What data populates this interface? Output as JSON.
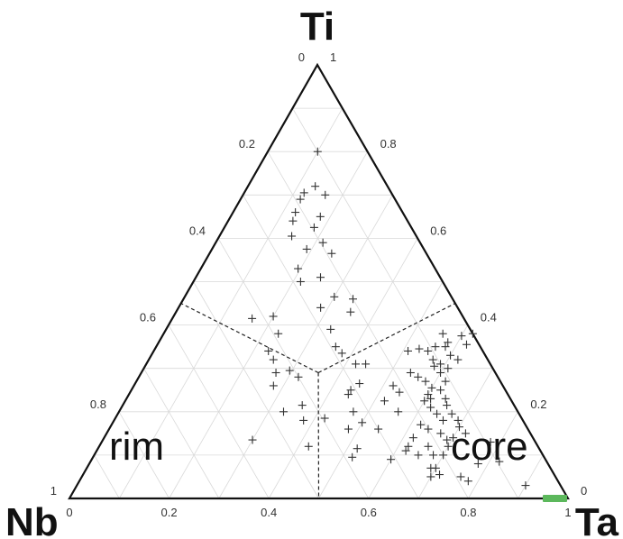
{
  "chart_data": {
    "type": "scatter",
    "subtype": "ternary",
    "vertices": {
      "top": "Ti",
      "left": "Nb",
      "right": "Ta"
    },
    "grid": true,
    "grid_step": 0.1,
    "marker": "plus",
    "tick_labels": {
      "bottom": [
        "0",
        "0.2",
        "0.4",
        "0.6",
        "0.8",
        "1"
      ],
      "left": [
        "0",
        "0.2",
        "0.4",
        "0.6",
        "0.8",
        "1"
      ],
      "right": [
        "1",
        "0.8",
        "0.6",
        "0.4",
        "0.2",
        "0"
      ]
    },
    "regions": [
      {
        "label": "rim"
      },
      {
        "label": "core"
      }
    ],
    "boundary_center": {
      "Ti": 0.29,
      "Nb": 0.355,
      "Ta": 0.355
    },
    "boundary_ends": [
      {
        "Ti": 0.45,
        "Nb": 0.55,
        "Ta": 0.0
      },
      {
        "Ti": 0.45,
        "Nb": 0.0,
        "Ta": 0.55
      },
      {
        "Ti": 0.0,
        "Nb": 0.5,
        "Ta": 0.5
      }
    ],
    "highlight": {
      "color": "#5cb85c",
      "Ta_from": 0.95,
      "Ta_to": 1.0,
      "Ti": 0.0
    },
    "points": [
      [
        0.8,
        0.1
      ],
      [
        0.705,
        0.12
      ],
      [
        0.72,
        0.135
      ],
      [
        0.69,
        0.12
      ],
      [
        0.66,
        0.125
      ],
      [
        0.64,
        0.13
      ],
      [
        0.7,
        0.165
      ],
      [
        0.65,
        0.18
      ],
      [
        0.605,
        0.145
      ],
      [
        0.625,
        0.18
      ],
      [
        0.575,
        0.19
      ],
      [
        0.59,
        0.215
      ],
      [
        0.565,
        0.245
      ],
      [
        0.53,
        0.195
      ],
      [
        0.5,
        0.215
      ],
      [
        0.51,
        0.25
      ],
      [
        0.465,
        0.3
      ],
      [
        0.44,
        0.285
      ],
      [
        0.46,
        0.34
      ],
      [
        0.43,
        0.35
      ],
      [
        0.42,
        0.2
      ],
      [
        0.415,
        0.16
      ],
      [
        0.38,
        0.23
      ],
      [
        0.39,
        0.33
      ],
      [
        0.34,
        0.23
      ],
      [
        0.32,
        0.25
      ],
      [
        0.35,
        0.36
      ],
      [
        0.335,
        0.38
      ],
      [
        0.31,
        0.42
      ],
      [
        0.29,
        0.27
      ],
      [
        0.295,
        0.295
      ],
      [
        0.28,
        0.32
      ],
      [
        0.26,
        0.28
      ],
      [
        0.265,
        0.45
      ],
      [
        0.24,
        0.44
      ],
      [
        0.225,
        0.52
      ],
      [
        0.215,
        0.36
      ],
      [
        0.2,
        0.33
      ],
      [
        0.185,
        0.42
      ],
      [
        0.18,
        0.38
      ],
      [
        0.175,
        0.5
      ],
      [
        0.16,
        0.48
      ],
      [
        0.135,
        0.3
      ],
      [
        0.12,
        0.42
      ],
      [
        0.115,
        0.52
      ],
      [
        0.095,
        0.52
      ],
      [
        0.05,
        0.7
      ],
      [
        0.055,
        0.715
      ],
      [
        0.07,
        0.69
      ],
      [
        0.03,
        0.9
      ],
      [
        0.34,
        0.51
      ],
      [
        0.345,
        0.53
      ],
      [
        0.34,
        0.55
      ],
      [
        0.35,
        0.56
      ],
      [
        0.36,
        0.58
      ],
      [
        0.38,
        0.56
      ],
      [
        0.375,
        0.6
      ],
      [
        0.38,
        0.62
      ],
      [
        0.355,
        0.62
      ],
      [
        0.33,
        0.6
      ],
      [
        0.32,
        0.62
      ],
      [
        0.305,
        0.58
      ],
      [
        0.29,
        0.54
      ],
      [
        0.28,
        0.56
      ],
      [
        0.27,
        0.58
      ],
      [
        0.26,
        0.52
      ],
      [
        0.245,
        0.54
      ],
      [
        0.24,
        0.6
      ],
      [
        0.225,
        0.6
      ],
      [
        0.21,
        0.62
      ],
      [
        0.2,
        0.56
      ],
      [
        0.195,
        0.64
      ],
      [
        0.18,
        0.66
      ],
      [
        0.16,
        0.64
      ],
      [
        0.15,
        0.67
      ],
      [
        0.135,
        0.69
      ],
      [
        0.12,
        0.7
      ],
      [
        0.1,
        0.7
      ],
      [
        0.08,
        0.78
      ],
      [
        0.085,
        0.82
      ],
      [
        0.13,
        0.78
      ],
      [
        0.12,
        0.62
      ],
      [
        0.05,
        0.76
      ],
      [
        0.04,
        0.78
      ],
      [
        0.16,
        0.54
      ],
      [
        0.2,
        0.47
      ],
      [
        0.25,
        0.44
      ],
      [
        0.31,
        0.44
      ],
      [
        0.29,
        0.6
      ],
      [
        0.27,
        0.62
      ],
      [
        0.25,
        0.62
      ],
      [
        0.23,
        0.64
      ],
      [
        0.215,
        0.65
      ],
      [
        0.195,
        0.67
      ],
      [
        0.18,
        0.69
      ],
      [
        0.165,
        0.7
      ],
      [
        0.15,
        0.72
      ],
      [
        0.14,
        0.7
      ],
      [
        0.31,
        0.59
      ],
      [
        0.3,
        0.61
      ],
      [
        0.35,
        0.58
      ],
      [
        0.32,
        0.57
      ],
      [
        0.255,
        0.6
      ],
      [
        0.23,
        0.61
      ],
      [
        0.17,
        0.62
      ],
      [
        0.14,
        0.62
      ],
      [
        0.12,
        0.66
      ],
      [
        0.1,
        0.65
      ],
      [
        0.1,
        0.68
      ],
      [
        0.07,
        0.7
      ],
      [
        0.11,
        0.62
      ],
      [
        0.09,
        0.6
      ]
    ]
  }
}
